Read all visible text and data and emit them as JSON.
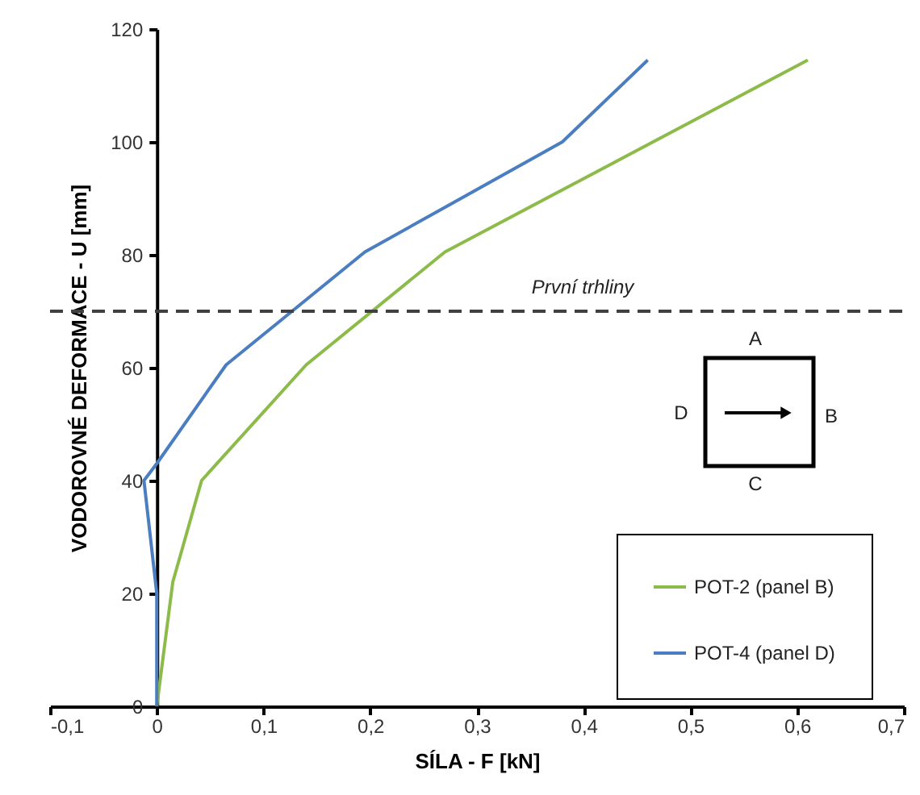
{
  "chart_data": {
    "type": "line",
    "xlabel": "SÍLA - F [kN]",
    "ylabel": "VODOROVNÉ DEFORMACE - U [mm]",
    "xlim": [
      -0.1,
      0.7
    ],
    "ylim": [
      0,
      120
    ],
    "xticks": [
      {
        "value": -0.1,
        "label": "-0,1"
      },
      0,
      {
        "value": 0.1,
        "label": "0,1"
      },
      {
        "value": 0.2,
        "label": "0,2"
      },
      {
        "value": 0.3,
        "label": "0,3"
      },
      {
        "value": 0.4,
        "label": "0,4"
      },
      {
        "value": 0.5,
        "label": "0,5"
      },
      {
        "value": 0.6,
        "label": "0,6"
      },
      {
        "value": 0.7,
        "label": "0,7"
      }
    ],
    "yticks": [
      0,
      20,
      40,
      60,
      80,
      100,
      120
    ],
    "series": [
      {
        "name": "POT-2 (panel B)",
        "color": "#8dbb4a",
        "x": [
          0,
          0.015,
          0.042,
          0.14,
          0.27,
          0.61
        ],
        "values": [
          0,
          22,
          40,
          60.5,
          80.5,
          114.5
        ]
      },
      {
        "name": "POT-4 (panel D)",
        "color": "#4a7ec0",
        "x": [
          0,
          0,
          -0.012,
          0,
          0.065,
          0.195,
          0.38,
          0.46
        ],
        "values": [
          0,
          20,
          40,
          43,
          60.5,
          80.5,
          100,
          114.5
        ]
      }
    ],
    "ref_lines": [
      {
        "axis": "y",
        "value": 70,
        "label": "První trhliny",
        "color": "#404040",
        "line_style": "dashed"
      }
    ],
    "annotations": [
      "A",
      "B",
      "C",
      "D"
    ],
    "legend": "bottom right",
    "grid": false,
    "marker": "none",
    "line_style": "solid"
  }
}
